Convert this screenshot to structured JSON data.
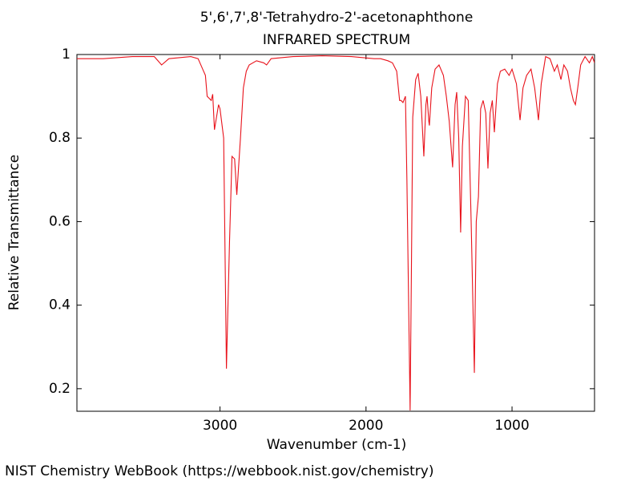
{
  "chart_data": {
    "type": "line",
    "title": "5',6',7',8'-Tetrahydro-2'-acetonaphthone",
    "subtitle": "INFRARED SPECTRUM",
    "x_label": "Wavenumber (cm-1)",
    "y_label": "Relative Transmittance",
    "color": "#e8121b",
    "xlim": [
      3980,
      435
    ],
    "ylim": [
      0.146,
      1
    ],
    "xticks": [
      3000,
      2000,
      1000
    ],
    "yticks": [
      0.2,
      0.4,
      0.6,
      0.8,
      1
    ],
    "x": [
      3980,
      3800,
      3600,
      3450,
      3400,
      3350,
      3200,
      3150,
      3100,
      3088,
      3060,
      3050,
      3038,
      3010,
      3000,
      2975,
      2956,
      2935,
      2918,
      2900,
      2885,
      2860,
      2840,
      2820,
      2800,
      2750,
      2700,
      2681,
      2650,
      2500,
      2300,
      2100,
      1945,
      1900,
      1850,
      1819,
      1790,
      1770,
      1760,
      1747,
      1730,
      1720,
      1698,
      1690,
      1680,
      1660,
      1643,
      1625,
      1604,
      1590,
      1582,
      1570,
      1566,
      1550,
      1527,
      1500,
      1470,
      1450,
      1430,
      1407,
      1390,
      1379,
      1365,
      1352,
      1340,
      1319,
      1300,
      1280,
      1258,
      1245,
      1230,
      1215,
      1198,
      1180,
      1165,
      1150,
      1135,
      1121,
      1100,
      1080,
      1050,
      1020,
      1000,
      970,
      945,
      925,
      900,
      870,
      845,
      819,
      800,
      770,
      740,
      710,
      690,
      665,
      645,
      620,
      600,
      580,
      566,
      550,
      530,
      500,
      470,
      450,
      435
    ],
    "values": [
      0.99,
      0.99,
      0.995,
      0.995,
      0.975,
      0.99,
      0.995,
      0.99,
      0.95,
      0.9,
      0.89,
      0.905,
      0.82,
      0.88,
      0.87,
      0.8,
      0.248,
      0.55,
      0.756,
      0.75,
      0.664,
      0.8,
      0.92,
      0.96,
      0.975,
      0.985,
      0.98,
      0.975,
      0.99,
      0.995,
      0.997,
      0.995,
      0.99,
      0.99,
      0.985,
      0.98,
      0.96,
      0.89,
      0.89,
      0.885,
      0.9,
      0.7,
      0.148,
      0.45,
      0.85,
      0.94,
      0.955,
      0.9,
      0.756,
      0.88,
      0.9,
      0.84,
      0.83,
      0.92,
      0.965,
      0.975,
      0.95,
      0.9,
      0.84,
      0.73,
      0.88,
      0.91,
      0.8,
      0.574,
      0.78,
      0.9,
      0.89,
      0.6,
      0.238,
      0.6,
      0.66,
      0.87,
      0.89,
      0.86,
      0.727,
      0.86,
      0.89,
      0.814,
      0.93,
      0.96,
      0.965,
      0.95,
      0.965,
      0.93,
      0.843,
      0.92,
      0.95,
      0.965,
      0.92,
      0.843,
      0.93,
      0.995,
      0.99,
      0.96,
      0.975,
      0.94,
      0.975,
      0.96,
      0.92,
      0.89,
      0.88,
      0.92,
      0.975,
      0.995,
      0.98,
      0.995,
      0.98
    ]
  },
  "footer": "NIST Chemistry WebBook (https://webbook.nist.gov/chemistry)"
}
